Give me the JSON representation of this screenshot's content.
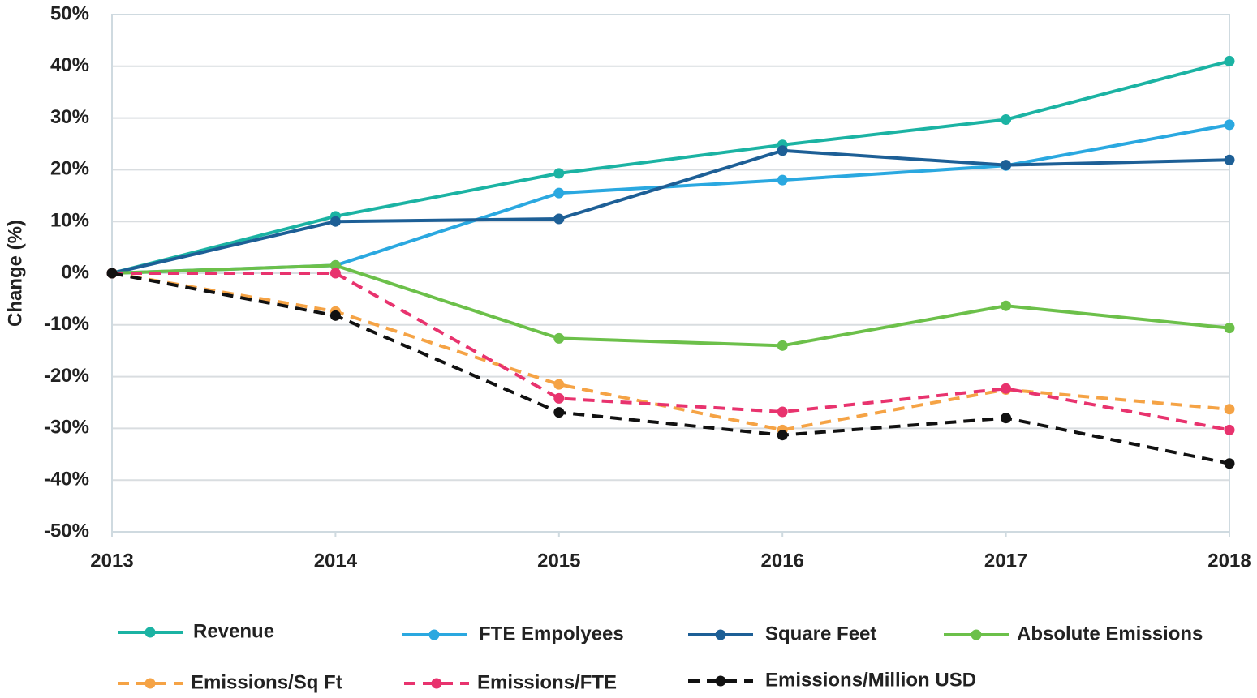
{
  "chart_data": {
    "type": "line",
    "y_label": "Change (%)",
    "x": [
      2013,
      2014,
      2015,
      2016,
      2017,
      2018
    ],
    "xlim": [
      2013,
      2018
    ],
    "xticks": [
      2013,
      2014,
      2015,
      2016,
      2017,
      2018
    ],
    "ylim": [
      -50,
      50
    ],
    "yticks": [
      {
        "value": -50,
        "label": "-50%"
      },
      {
        "value": -40,
        "label": "-40%"
      },
      {
        "value": -30,
        "label": "-30%"
      },
      {
        "value": -20,
        "label": "-20%"
      },
      {
        "value": -10,
        "label": "-10%"
      },
      {
        "value": 0,
        "label": "0%"
      },
      {
        "value": 10,
        "label": "10%"
      },
      {
        "value": 20,
        "label": "20%"
      },
      {
        "value": 30,
        "label": "30%"
      },
      {
        "value": 40,
        "label": "40%"
      },
      {
        "value": 50,
        "label": "50%"
      }
    ],
    "grid": true,
    "legend": "bottom",
    "series": [
      {
        "name": "Revenue",
        "color": "#1bb3a3",
        "dashed": false,
        "values": [
          0,
          11,
          19.3,
          24.8,
          29.7,
          41
        ]
      },
      {
        "name": "FTE Empolyees",
        "color": "#2aa8e0",
        "dashed": false,
        "values": [
          0,
          1.5,
          15.5,
          18,
          20.8,
          28.7
        ]
      },
      {
        "name": "Square Feet",
        "color": "#1d5f96",
        "dashed": false,
        "values": [
          0,
          10,
          10.5,
          23.7,
          20.9,
          21.9
        ]
      },
      {
        "name": "Absolute Emissions",
        "color": "#6cc04a",
        "dashed": false,
        "values": [
          0,
          1.5,
          -12.6,
          -14,
          -6.3,
          -10.6
        ]
      },
      {
        "name": "Emissions/Sq Ft",
        "color": "#f5a345",
        "dashed": true,
        "values": [
          0,
          -7.4,
          -21.5,
          -30.3,
          -22.5,
          -26.3
        ]
      },
      {
        "name": "Emissions/FTE",
        "color": "#e8336e",
        "dashed": true,
        "values": [
          0,
          0,
          -24.2,
          -26.8,
          -22.3,
          -30.3
        ]
      },
      {
        "name": "Emissions/Million USD",
        "color": "#111111",
        "dashed": true,
        "values": [
          0,
          -8.2,
          -26.9,
          -31.3,
          -28,
          -36.8
        ]
      }
    ]
  }
}
